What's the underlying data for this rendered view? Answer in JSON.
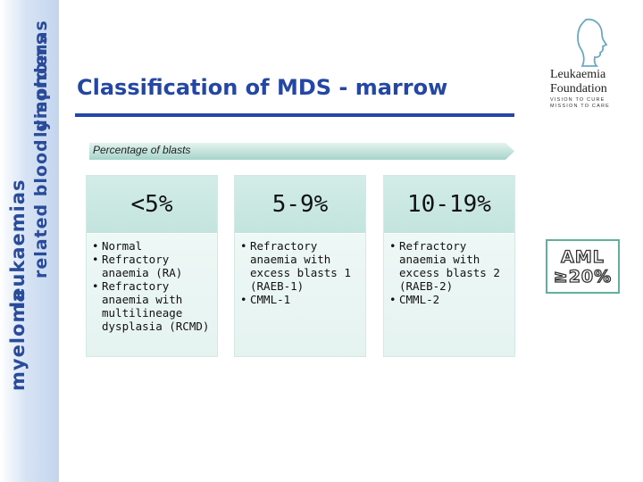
{
  "sidebar": {
    "line1": "myeloma",
    "line2": "leukaemias",
    "line3": "related blood disorders",
    "line4": "lymphomas"
  },
  "title": "Classification of MDS - marrow",
  "arrow": {
    "label": "Percentage of blasts"
  },
  "columns": [
    {
      "header": "<5%",
      "items": [
        "Normal",
        "Refractory anaemia (RA)",
        "Refractory anaemia with multilineage dysplasia (RCMD)"
      ]
    },
    {
      "header": "5-9%",
      "items": [
        "Refractory anaemia with excess blasts 1 (RAEB-1)",
        "CMML-1"
      ]
    },
    {
      "header": "10-19%",
      "items": [
        "Refractory anaemia with excess blasts 2 (RAEB-2)",
        "CMML-2"
      ]
    }
  ],
  "aml": {
    "line1": "AML",
    "line2": "≥20%"
  },
  "logo": {
    "name_line1": "Leukaemia",
    "name_line2": "Foundation",
    "tag_line1": "VISION TO CURE",
    "tag_line2": "MISSION TO CARE",
    "accent": "#6aa9c4"
  },
  "colors": {
    "title": "#2447a6",
    "sidebar_text": "#2a4a9a",
    "box_border": "#5fb09c",
    "column_header": "#c3e4de"
  }
}
